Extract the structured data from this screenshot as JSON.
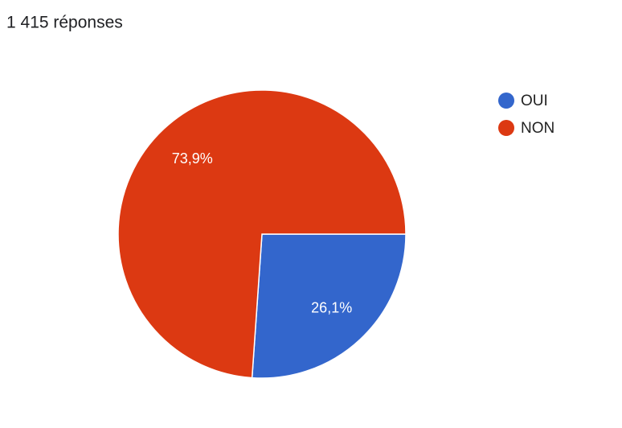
{
  "chart_data": {
    "type": "pie",
    "title": "1 415 réponses",
    "categories": [
      "OUI",
      "NON"
    ],
    "values": [
      26.1,
      73.9
    ],
    "value_labels": [
      "26,1%",
      "73,9%"
    ],
    "colors": [
      "#3366cc",
      "#dc3912"
    ],
    "legend": "right"
  }
}
